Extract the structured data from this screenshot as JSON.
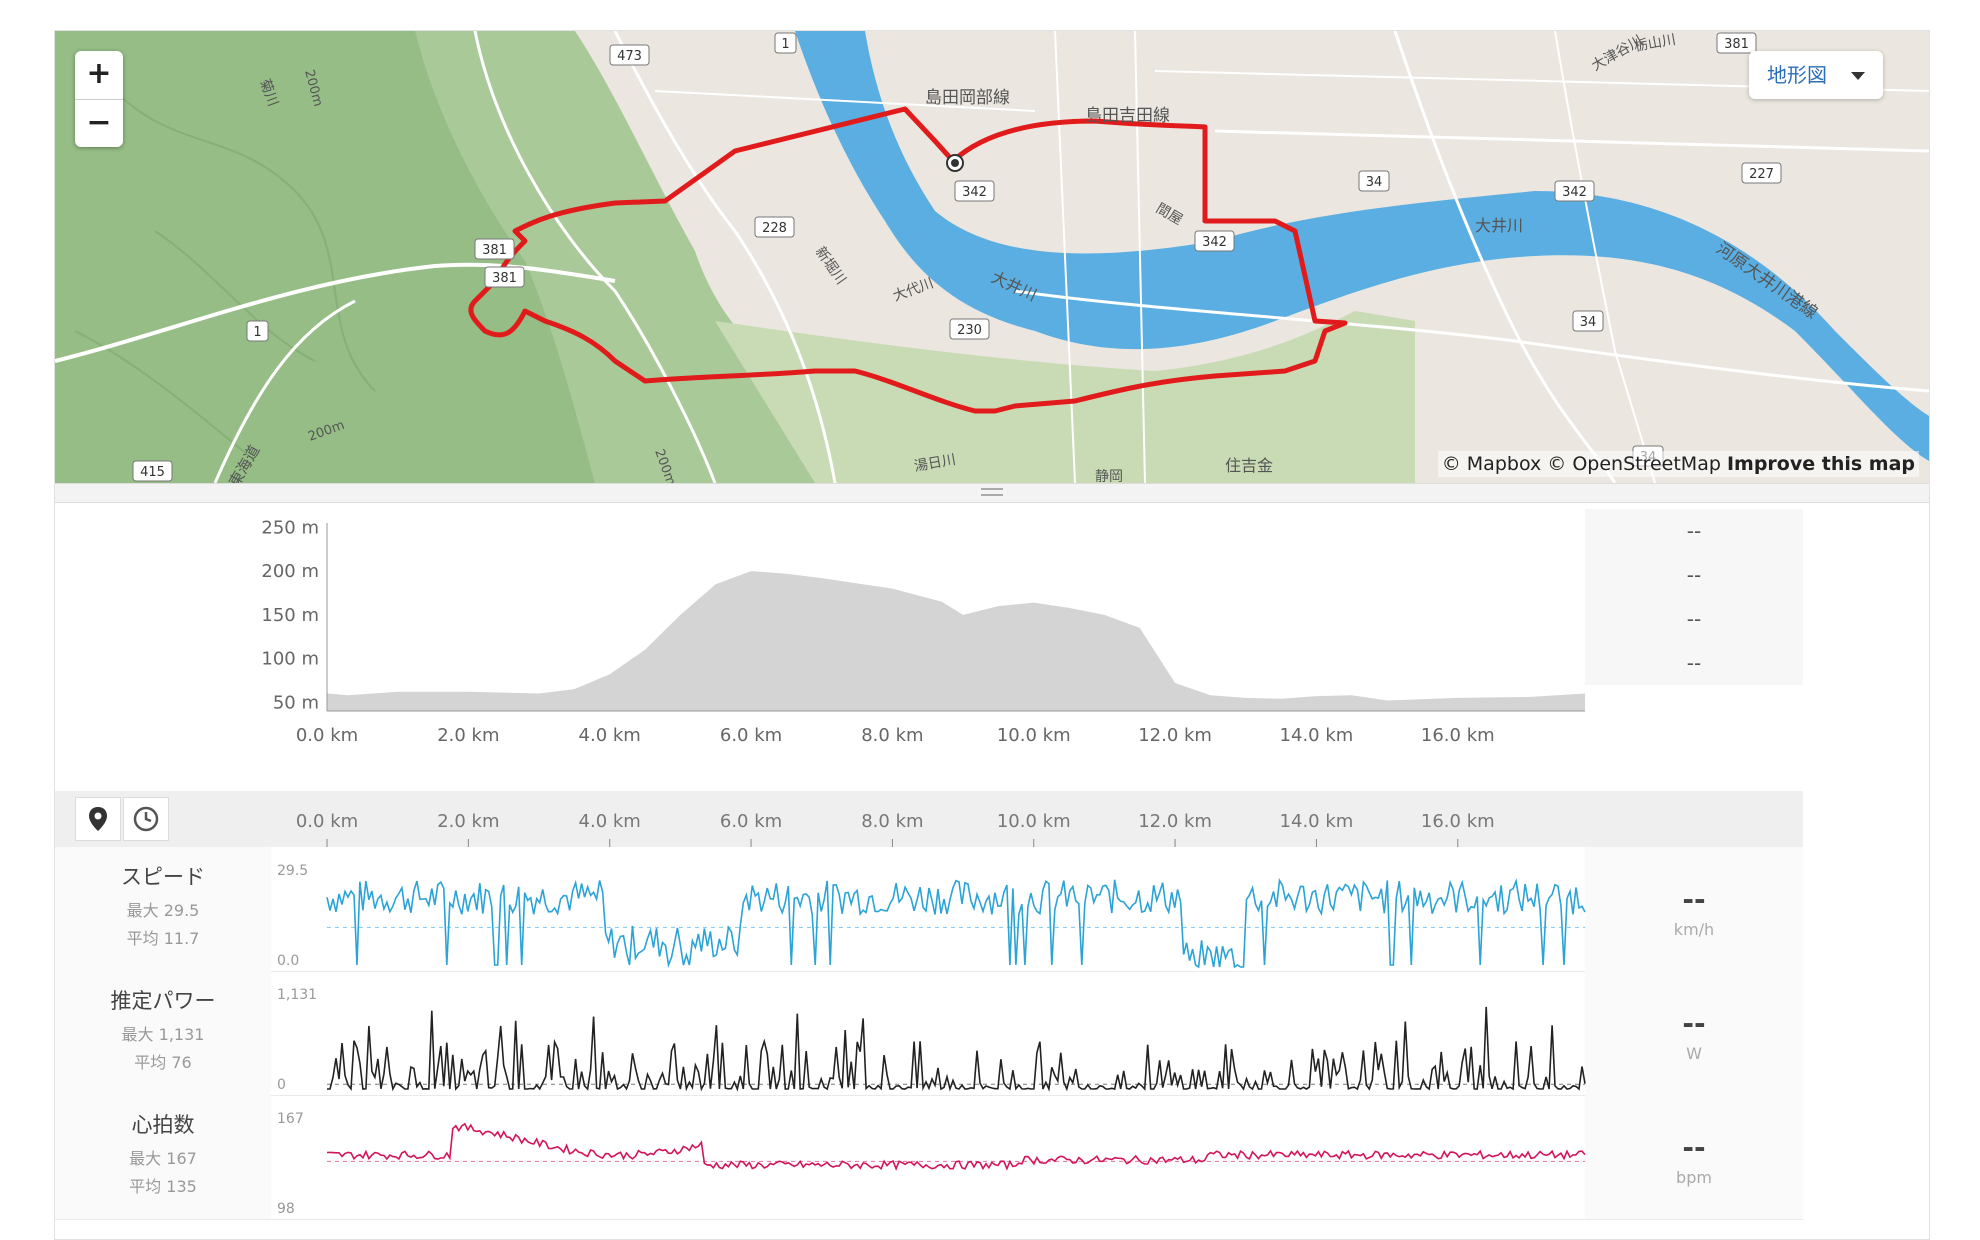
{
  "map": {
    "zoom_in": "+",
    "zoom_out": "−",
    "type_button": "地形図",
    "attribution_mapbox": "© Mapbox",
    "attribution_osm": "© OpenStreetMap",
    "attribution_improve": "Improve this map",
    "road_badges": [
      "473",
      "381",
      "381",
      "381",
      "1",
      "342",
      "342",
      "34",
      "34",
      "342",
      "227",
      "228",
      "230",
      "1",
      "415",
      "34"
    ],
    "place_labels": [
      "島田岡部線",
      "島田吉田線",
      "大井川",
      "大井川",
      "河原大井川港線",
      "新堀川",
      "大代川",
      "菊川",
      "旧東海道",
      "湯日川",
      "住吉金",
      "静岡",
      "大津谷川",
      "間屋",
      "栃山川",
      "200m",
      "200m",
      "200m"
    ],
    "colors": {
      "route": "#e11b1b",
      "river": "#5aaee2",
      "terrain": "#a9c999",
      "land": "#ebe6df"
    }
  },
  "elevation": {
    "y_ticks": [
      "250 m",
      "200 m",
      "150 m",
      "100 m",
      "50 m"
    ],
    "x_ticks": [
      "0.0 km",
      "2.0 km",
      "4.0 km",
      "6.0 km",
      "8.0 km",
      "10.0 km",
      "12.0 km",
      "14.0 km",
      "16.0 km"
    ],
    "values": [
      "--",
      "--",
      "--",
      "--"
    ],
    "chart_data": {
      "type": "area",
      "xlabel": "",
      "ylabel": "",
      "x": [
        0,
        0.3,
        1,
        2,
        3,
        3.5,
        4,
        4.5,
        5,
        5.5,
        6,
        6.5,
        7,
        8,
        8.7,
        9,
        9.5,
        10,
        10.5,
        11,
        11.5,
        12,
        12.5,
        13,
        13.5,
        14,
        14.5,
        15,
        16,
        17,
        17.8
      ],
      "y": [
        60,
        58,
        62,
        62,
        60,
        65,
        82,
        110,
        150,
        185,
        200,
        197,
        192,
        180,
        165,
        150,
        160,
        164,
        158,
        150,
        135,
        72,
        58,
        55,
        54,
        57,
        58,
        52,
        55,
        56,
        60
      ],
      "xlim": [
        0,
        17.8
      ],
      "ylim": [
        40,
        255
      ]
    }
  },
  "toolbar": {
    "pin_icon": "map-pin-icon",
    "clock_icon": "clock-icon",
    "x_ticks": [
      "0.0 km",
      "2.0 km",
      "4.0 km",
      "6.0 km",
      "8.0 km",
      "10.0 km",
      "12.0 km",
      "14.0 km",
      "16.0 km"
    ]
  },
  "streams": [
    {
      "name": "スピード",
      "max": "最大 29.5",
      "avg": "平均 11.7",
      "top": "29.5",
      "bottom": "0.0",
      "value": "--",
      "unit": "km/h",
      "color": "#2aa3d6"
    },
    {
      "name": "推定パワー",
      "max": "最大 1,131",
      "avg": "平均 76",
      "top": "1,131",
      "bottom": "0",
      "value": "--",
      "unit": "W",
      "color": "#222222"
    },
    {
      "name": "心拍数",
      "max": "最大 167",
      "avg": "平均 135",
      "top": "167",
      "bottom": "98",
      "value": "--",
      "unit": "bpm",
      "color": "#d4145a"
    }
  ]
}
